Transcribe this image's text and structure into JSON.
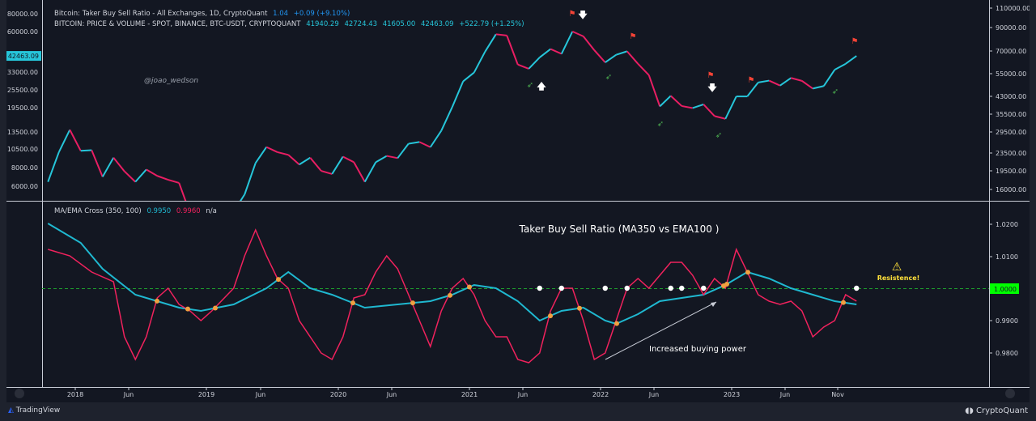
{
  "legend": {
    "line1": {
      "title": "Bitcoin: Taker Buy Sell Ratio - All Exchanges, 1D, CryptoQuant",
      "value": "1.04",
      "change": "+0.09 (+9.10%)"
    },
    "line2": {
      "title": "BITCOIN: PRICE & VOLUME - SPOT, BINANCE, BTC-USDT, CRYPTOQUANT",
      "open": "41940.29",
      "high": "42724.43",
      "low": "41605.00",
      "close": "42463.09",
      "change": "+522.79 (+1.25%)"
    },
    "indicator": {
      "title": "MA/EMA Cross (350, 100)",
      "ema": "0.9950",
      "ma": "0.9960",
      "extra": "n/a"
    }
  },
  "footer": {
    "left": "TradingView",
    "right": "CryptoQuant"
  },
  "colors": {
    "background": "#131722",
    "price_up": "#26c6da",
    "price_down": "#e91e63",
    "ema": "#1fb8d0",
    "ma": "#f0225d",
    "cross_dot": "#f0a040",
    "level_line": "#1e9e2e",
    "level_label": "#00ff00",
    "resistance": "#ffe03a"
  },
  "chart_data": [
    {
      "type": "line",
      "name": "price",
      "yscale": "log",
      "left_axis_ticks": [
        "80000.00",
        "60000.00",
        "33000.00",
        "25500.00",
        "19500.00",
        "13500.00",
        "10500.00",
        "8000.00",
        "6000.00"
      ],
      "right_axis_ticks": [
        "110000.00",
        "90000.00",
        "70000.00",
        "55000.00",
        "43000.00",
        "35500.00",
        "29500.00",
        "23500.00",
        "19500.00",
        "16000.00"
      ],
      "last_price_label": "42463.09",
      "watermark": "@joao_wedson",
      "x": [
        "2017-10",
        "2017-11",
        "2017-12",
        "2018-01",
        "2018-02",
        "2018-03",
        "2018-04",
        "2018-05",
        "2018-06",
        "2018-07",
        "2018-08",
        "2018-09",
        "2018-10",
        "2018-11",
        "2018-12",
        "2019-01",
        "2019-02",
        "2019-03",
        "2019-04",
        "2019-05",
        "2019-06",
        "2019-07",
        "2019-08",
        "2019-09",
        "2019-10",
        "2019-11",
        "2019-12",
        "2020-01",
        "2020-02",
        "2020-03",
        "2020-04",
        "2020-05",
        "2020-06",
        "2020-07",
        "2020-08",
        "2020-09",
        "2020-10",
        "2020-11",
        "2020-12",
        "2021-01",
        "2021-02",
        "2021-03",
        "2021-04",
        "2021-05",
        "2021-06",
        "2021-07",
        "2021-08",
        "2021-09",
        "2021-10",
        "2021-11",
        "2021-12",
        "2022-01",
        "2022-02",
        "2022-03",
        "2022-04",
        "2022-05",
        "2022-06",
        "2022-07",
        "2022-08",
        "2022-09",
        "2022-10",
        "2022-11",
        "2022-12",
        "2023-01",
        "2023-02",
        "2023-03",
        "2023-04",
        "2023-05",
        "2023-06",
        "2023-07",
        "2023-08",
        "2023-09",
        "2023-10",
        "2023-11",
        "2023-12"
      ],
      "values": [
        6400,
        10000,
        14000,
        10200,
        10300,
        6900,
        9200,
        7500,
        6400,
        7700,
        7000,
        6600,
        6300,
        4000,
        3700,
        3450,
        3800,
        4100,
        5300,
        8500,
        10800,
        10000,
        9600,
        8300,
        9200,
        7550,
        7200,
        9350,
        8600,
        6400,
        8600,
        9450,
        9140,
        11350,
        11650,
        10780,
        13800,
        19700,
        29000,
        33100,
        45200,
        58800,
        57700,
        37300,
        35000,
        41500,
        47100,
        43800,
        61300,
        57000,
        46300,
        38500,
        43200,
        45500,
        37700,
        31800,
        19900,
        23300,
        20000,
        19400,
        20500,
        17200,
        16500,
        23100,
        23100,
        28500,
        29300,
        27200,
        30500,
        29200,
        26000,
        27000,
        34500,
        37700,
        42463
      ]
    },
    {
      "type": "line",
      "name": "ratio",
      "title": "Taker Buy Sell Ratio (MA350 vs EMA100 )",
      "y_ticks": [
        "1.0200",
        "1.0100",
        "1.0000",
        "0.9900",
        "0.9800"
      ],
      "ylim": [
        0.975,
        1.023
      ],
      "level": {
        "value": 1.0,
        "label": "1.0000"
      },
      "annotations": {
        "resistance": "Resistence!",
        "buying": "Increased buying power"
      },
      "x_ticks": [
        "2018",
        "Jun",
        "2019",
        "Jun",
        "2020",
        "Jun",
        "2021",
        "Jun",
        "2022",
        "Jun",
        "2023",
        "Jun",
        "Nov"
      ],
      "series": [
        {
          "name": "EMA100",
          "points": [
            [
              "2017-10",
              1.02
            ],
            [
              "2018-01",
              1.014
            ],
            [
              "2018-03",
              1.006
            ],
            [
              "2018-06",
              0.998
            ],
            [
              "2018-08",
              0.996
            ],
            [
              "2018-10",
              0.994
            ],
            [
              "2018-12",
              0.993
            ],
            [
              "2019-03",
              0.995
            ],
            [
              "2019-06",
              1.0
            ],
            [
              "2019-08",
              1.005
            ],
            [
              "2019-10",
              1.0
            ],
            [
              "2019-12",
              0.998
            ],
            [
              "2020-03",
              0.994
            ],
            [
              "2020-06",
              0.995
            ],
            [
              "2020-09",
              0.996
            ],
            [
              "2020-11",
              0.998
            ],
            [
              "2021-01",
              1.001
            ],
            [
              "2021-03",
              1.0
            ],
            [
              "2021-05",
              0.996
            ],
            [
              "2021-07",
              0.99
            ],
            [
              "2021-09",
              0.993
            ],
            [
              "2021-11",
              0.994
            ],
            [
              "2022-01",
              0.99
            ],
            [
              "2022-02",
              0.989
            ],
            [
              "2022-04",
              0.992
            ],
            [
              "2022-06",
              0.996
            ],
            [
              "2022-08",
              0.997
            ],
            [
              "2022-10",
              0.998
            ],
            [
              "2022-12",
              1.001
            ],
            [
              "2023-02",
              1.005
            ],
            [
              "2023-04",
              1.003
            ],
            [
              "2023-06",
              1.0
            ],
            [
              "2023-08",
              0.998
            ],
            [
              "2023-10",
              0.996
            ],
            [
              "2023-12",
              0.995
            ]
          ]
        },
        {
          "name": "MA350",
          "points": [
            [
              "2017-10",
              1.012
            ],
            [
              "2017-12",
              1.01
            ],
            [
              "2018-02",
              1.005
            ],
            [
              "2018-04",
              1.002
            ],
            [
              "2018-05",
              0.985
            ],
            [
              "2018-06",
              0.978
            ],
            [
              "2018-07",
              0.985
            ],
            [
              "2018-08",
              0.997
            ],
            [
              "2018-09",
              1.0
            ],
            [
              "2018-10",
              0.995
            ],
            [
              "2018-11",
              0.993
            ],
            [
              "2018-12",
              0.99
            ],
            [
              "2019-01",
              0.993
            ],
            [
              "2019-03",
              1.0
            ],
            [
              "2019-04",
              1.01
            ],
            [
              "2019-05",
              1.018
            ],
            [
              "2019-06",
              1.01
            ],
            [
              "2019-07",
              1.003
            ],
            [
              "2019-08",
              1.0
            ],
            [
              "2019-09",
              0.99
            ],
            [
              "2019-10",
              0.985
            ],
            [
              "2019-11",
              0.98
            ],
            [
              "2019-12",
              0.978
            ],
            [
              "2020-01",
              0.985
            ],
            [
              "2020-02",
              0.997
            ],
            [
              "2020-03",
              0.998
            ],
            [
              "2020-04",
              1.005
            ],
            [
              "2020-05",
              1.01
            ],
            [
              "2020-06",
              1.006
            ],
            [
              "2020-07",
              0.998
            ],
            [
              "2020-08",
              0.99
            ],
            [
              "2020-09",
              0.982
            ],
            [
              "2020-10",
              0.993
            ],
            [
              "2020-11",
              1.0
            ],
            [
              "2020-12",
              1.003
            ],
            [
              "2021-01",
              0.998
            ],
            [
              "2021-02",
              0.99
            ],
            [
              "2021-03",
              0.985
            ],
            [
              "2021-04",
              0.985
            ],
            [
              "2021-05",
              0.978
            ],
            [
              "2021-06",
              0.977
            ],
            [
              "2021-07",
              0.98
            ],
            [
              "2021-08",
              0.993
            ],
            [
              "2021-09",
              1.0
            ],
            [
              "2021-10",
              1.0
            ],
            [
              "2021-11",
              0.99
            ],
            [
              "2021-12",
              0.978
            ],
            [
              "2022-01",
              0.98
            ],
            [
              "2022-02",
              0.99
            ],
            [
              "2022-03",
              1.0
            ],
            [
              "2022-04",
              1.003
            ],
            [
              "2022-05",
              1.0
            ],
            [
              "2022-06",
              1.004
            ],
            [
              "2022-07",
              1.008
            ],
            [
              "2022-08",
              1.008
            ],
            [
              "2022-09",
              1.004
            ],
            [
              "2022-10",
              0.998
            ],
            [
              "2022-11",
              1.003
            ],
            [
              "2022-12",
              1.0
            ],
            [
              "2023-01",
              1.012
            ],
            [
              "2023-02",
              1.005
            ],
            [
              "2023-03",
              0.998
            ],
            [
              "2023-04",
              0.996
            ],
            [
              "2023-05",
              0.995
            ],
            [
              "2023-06",
              0.996
            ],
            [
              "2023-07",
              0.993
            ],
            [
              "2023-08",
              0.985
            ],
            [
              "2023-09",
              0.988
            ],
            [
              "2023-10",
              0.99
            ],
            [
              "2023-11",
              0.998
            ],
            [
              "2023-12",
              0.996
            ]
          ]
        }
      ],
      "level_touch_dates": [
        "2021-07",
        "2021-09",
        "2022-01",
        "2022-03",
        "2022-07",
        "2022-08",
        "2022-10",
        "2023-12"
      ]
    }
  ]
}
